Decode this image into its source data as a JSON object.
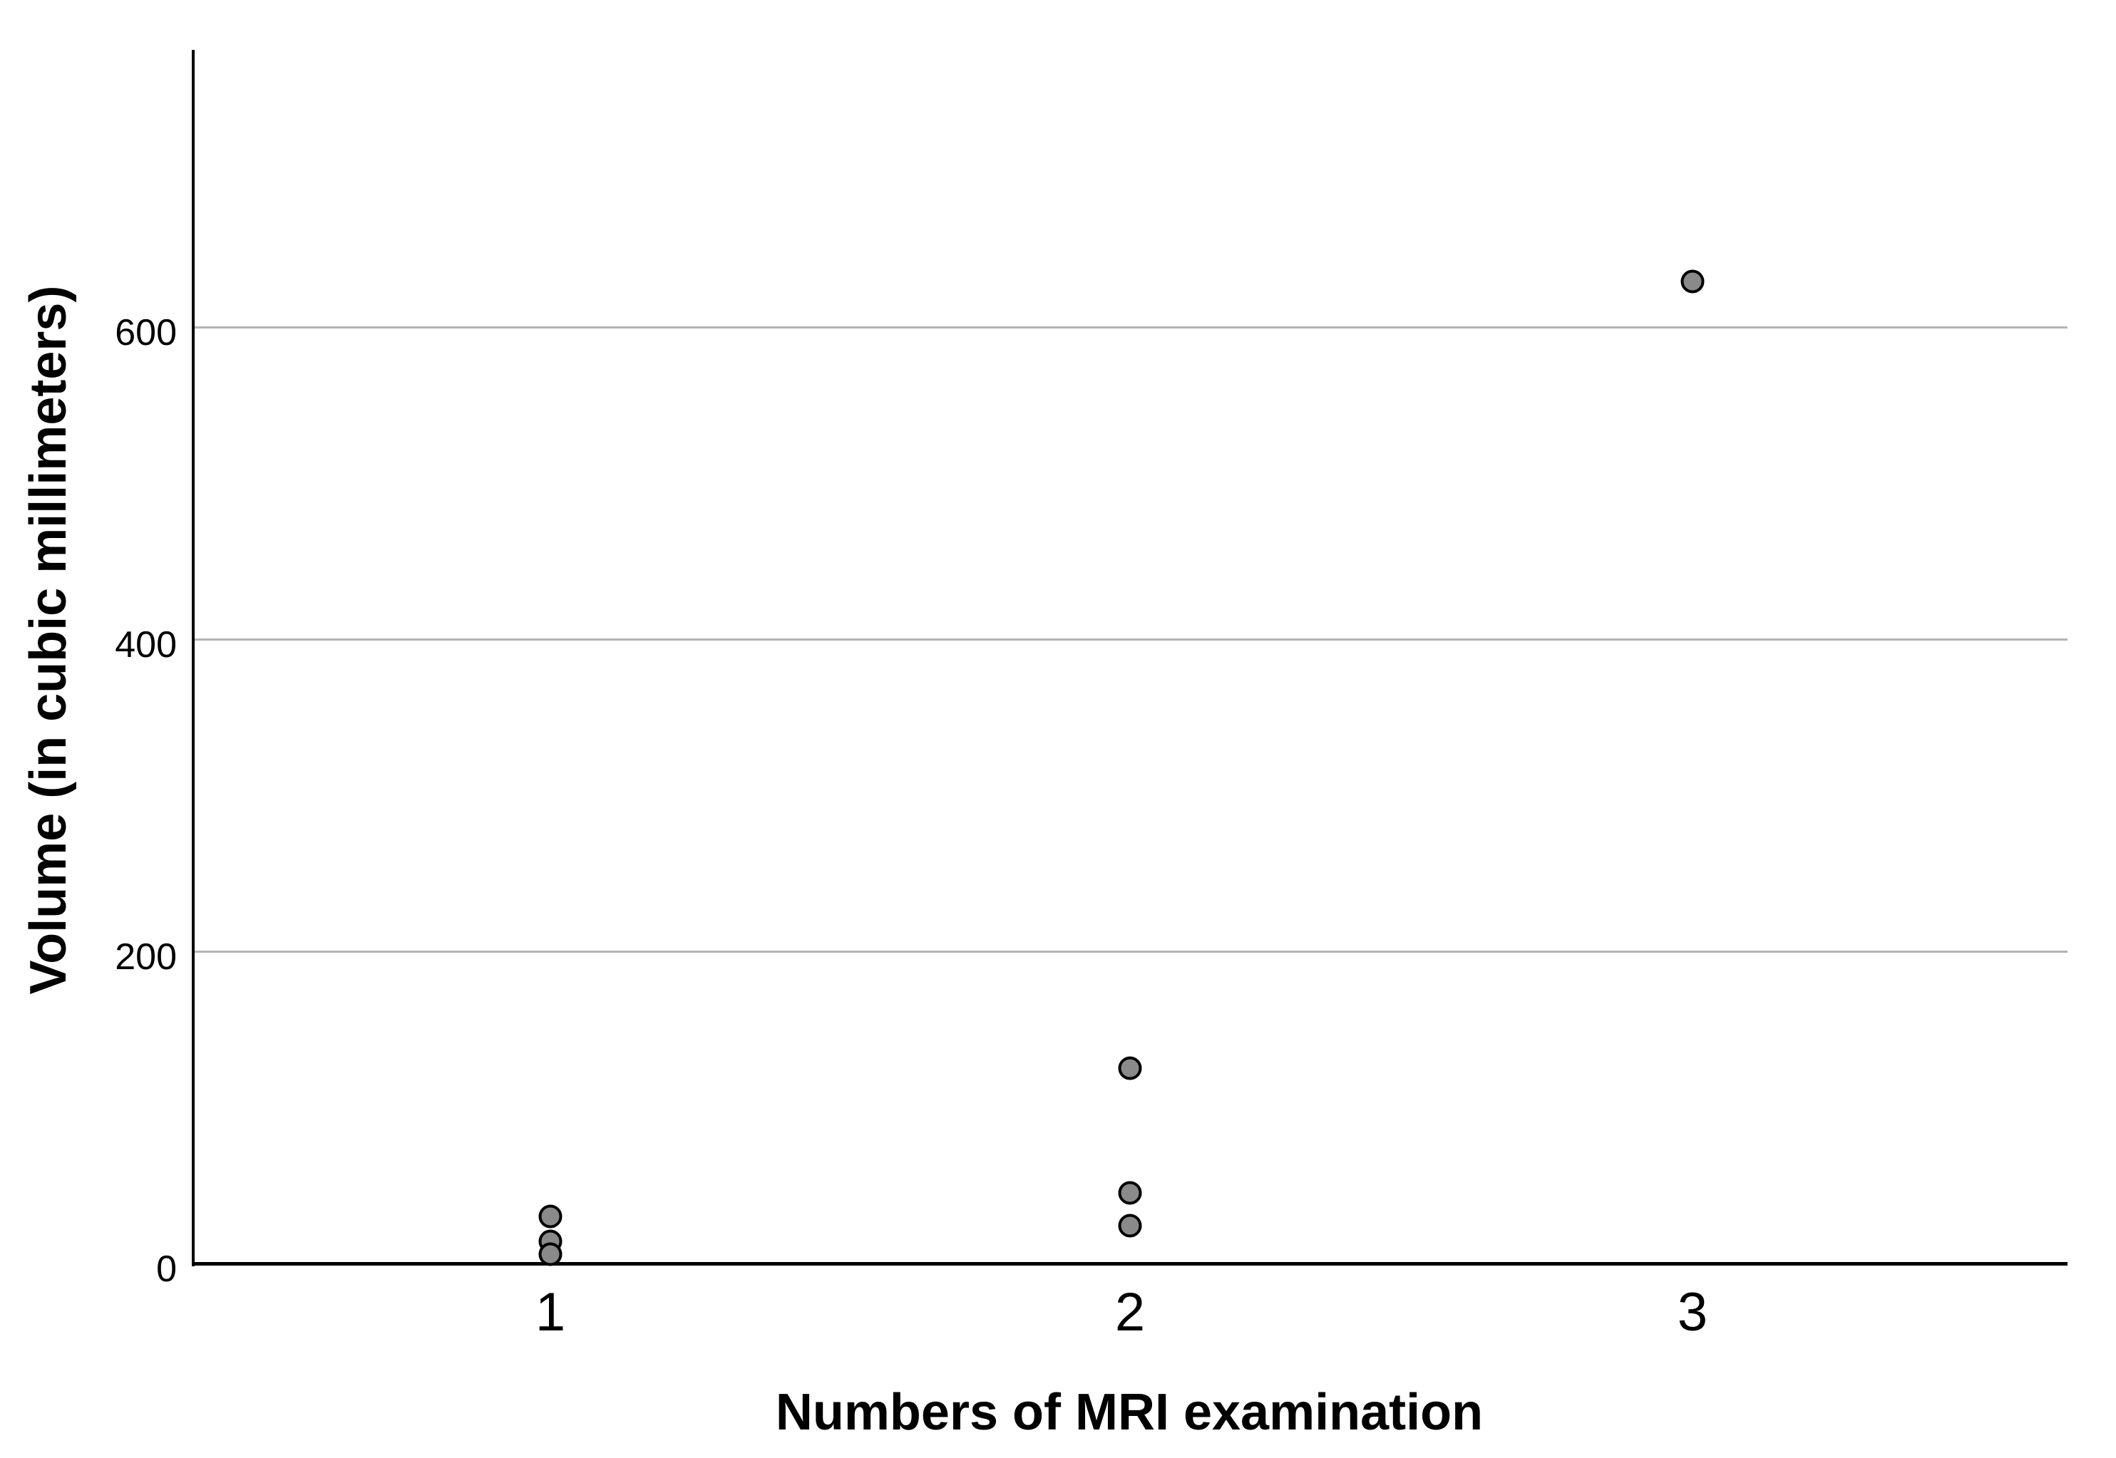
{
  "chart_data": {
    "type": "scatter",
    "title": "",
    "xlabel": "Numbers of MRI examination",
    "ylabel": "Volume (in cubic millimeters)",
    "x_categories": [
      "1",
      "2",
      "3"
    ],
    "y_ticks": [
      0,
      200,
      400,
      600
    ],
    "ylim": [
      0,
      780
    ],
    "grid": "horizontal-only",
    "legend": "none",
    "points": [
      {
        "x": 1,
        "y": 30
      },
      {
        "x": 1,
        "y": 14
      },
      {
        "x": 1,
        "y": 6
      },
      {
        "x": 2,
        "y": 125
      },
      {
        "x": 2,
        "y": 45
      },
      {
        "x": 2,
        "y": 24
      },
      {
        "x": 3,
        "y": 629
      }
    ],
    "point_style": {
      "fill": "#8a8a8a",
      "stroke": "#000000"
    }
  },
  "colors": {
    "background": "#ffffff",
    "axis": "#000000",
    "gridline": "#b4b4b4",
    "text": "#000000"
  }
}
